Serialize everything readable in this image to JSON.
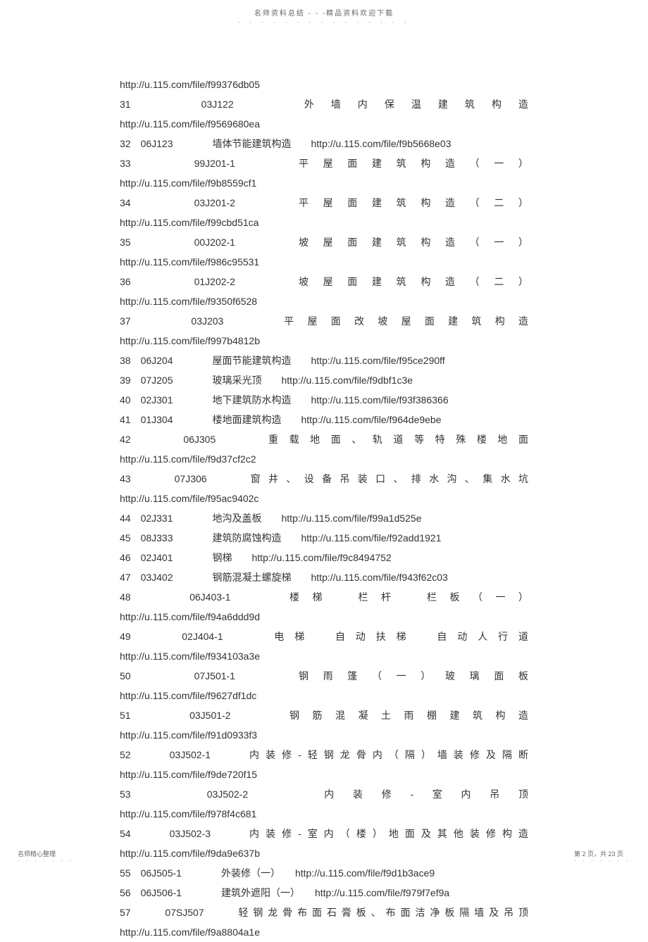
{
  "header": {
    "title": "名师资料总结 - - -精品资料欢迎下载",
    "dots": "- - - - - - - - - - - - - - -"
  },
  "content": {
    "lines": [
      {
        "type": "url",
        "text": "http://u.115.com/file/f99376db05"
      },
      {
        "type": "justify",
        "text": "31　　03J122　　外墙内保温建筑构造"
      },
      {
        "type": "url",
        "text": "http://u.115.com/file/f9569680ea"
      },
      {
        "type": "compact",
        "text": "32　06J123　　　　墙体节能建筑构造　　http://u.115.com/file/f9b5668e03"
      },
      {
        "type": "justify",
        "text": "33　　99J201-1　　平屋面建筑构造（一）"
      },
      {
        "type": "url",
        "text": "http://u.115.com/file/f9b8559cf1"
      },
      {
        "type": "justify",
        "text": "34　　03J201-2　　平屋面建筑构造（二）"
      },
      {
        "type": "url",
        "text": "http://u.115.com/file/f99cbd51ca"
      },
      {
        "type": "justify",
        "text": "35　　00J202-1　　坡屋面建筑构造（一）"
      },
      {
        "type": "url",
        "text": "http://u.115.com/file/f986c95531"
      },
      {
        "type": "justify",
        "text": "36　　01J202-2　　坡屋面建筑构造（二）"
      },
      {
        "type": "url",
        "text": "http://u.115.com/file/f9350f6528"
      },
      {
        "type": "justify",
        "text": "37　　03J203　　平屋面改坡屋面建筑构造"
      },
      {
        "type": "url",
        "text": "http://u.115.com/file/f997b4812b"
      },
      {
        "type": "compact",
        "text": "38　06J204　　　　屋面节能建筑构造　　http://u.115.com/file/f95ce290ff"
      },
      {
        "type": "compact",
        "text": "39　07J205　　　　玻璃采光顶　　http://u.115.com/file/f9dbf1c3e"
      },
      {
        "type": "compact",
        "text": "40　02J301　　　　地下建筑防水构造　　http://u.115.com/file/f93f386366"
      },
      {
        "type": "compact",
        "text": "41　01J304　　　　楼地面建筑构造　　http://u.115.com/file/f964de9ebe"
      },
      {
        "type": "justify",
        "text": "42　　06J305　　重载地面、轨道等特殊楼地面"
      },
      {
        "type": "url",
        "text": "http://u.115.com/file/f9d37cf2c2"
      },
      {
        "type": "justify",
        "text": "43　　07J306　　窗井、设备吊装口、排水沟、集水坑"
      },
      {
        "type": "url",
        "text": "http://u.115.com/file/f95ac9402c"
      },
      {
        "type": "compact",
        "text": "44　02J331　　　　地沟及盖板　　http://u.115.com/file/f99a1d525e"
      },
      {
        "type": "compact",
        "text": "45　08J333　　　　建筑防腐蚀构造　　http://u.115.com/file/f92add1921"
      },
      {
        "type": "compact",
        "text": "46　02J401　　　　钢梯　　http://u.115.com/file/f9c8494752"
      },
      {
        "type": "compact",
        "text": "47　03J402　　　　钢筋混凝土螺旋梯　　http://u.115.com/file/f943f62c03"
      },
      {
        "type": "justify",
        "text": "48　　06J403-1　　楼梯　栏杆　栏板（一）"
      },
      {
        "type": "url",
        "text": "http://u.115.com/file/f94a6ddd9d"
      },
      {
        "type": "justify",
        "text": "49　　02J404-1　　电梯　自动扶梯　自动人行道"
      },
      {
        "type": "url",
        "text": "http://u.115.com/file/f934103a3e"
      },
      {
        "type": "justify",
        "text": "50　　07J501-1　　钢雨篷（一）玻璃面板"
      },
      {
        "type": "url",
        "text": "http://u.115.com/file/f9627df1dc"
      },
      {
        "type": "justify",
        "text": "51　　03J501-2　　钢筋混凝土雨棚建筑构造"
      },
      {
        "type": "url",
        "text": "http://u.115.com/file/f91d0933f3"
      },
      {
        "type": "justify",
        "text": "52　　03J502-1　　内装修-轻钢龙骨内（隔）墙装修及隔断"
      },
      {
        "type": "url",
        "text": "http://u.115.com/file/f9de720f15"
      },
      {
        "type": "justify",
        "text": "53　　03J502-2　　内装修-室内吊顶"
      },
      {
        "type": "url",
        "text": "http://u.115.com/file/f978f4c681"
      },
      {
        "type": "justify",
        "text": "54　　03J502-3　　内装修-室内（楼）地面及其他装修构造"
      },
      {
        "type": "url",
        "text": "http://u.115.com/file/f9da9e637b"
      },
      {
        "type": "compact",
        "text": "55　06J505-1　　　　外装修（一）　　http://u.115.com/file/f9d1b3ace9"
      },
      {
        "type": "compact",
        "text": "56　06J506-1　　　　建筑外遮阳（一）　　http://u.115.com/file/f979f7ef9a"
      },
      {
        "type": "justify",
        "text": "57　　07SJ507　　轻钢龙骨布面石膏板、布面洁净板隔墙及吊顶"
      },
      {
        "type": "url",
        "text": "http://u.115.com/file/f9a8804a1e"
      }
    ]
  },
  "footer": {
    "left": "名师精心整理",
    "right": "第 2 页，共 23 页",
    "dots": "- - - - - - -"
  }
}
